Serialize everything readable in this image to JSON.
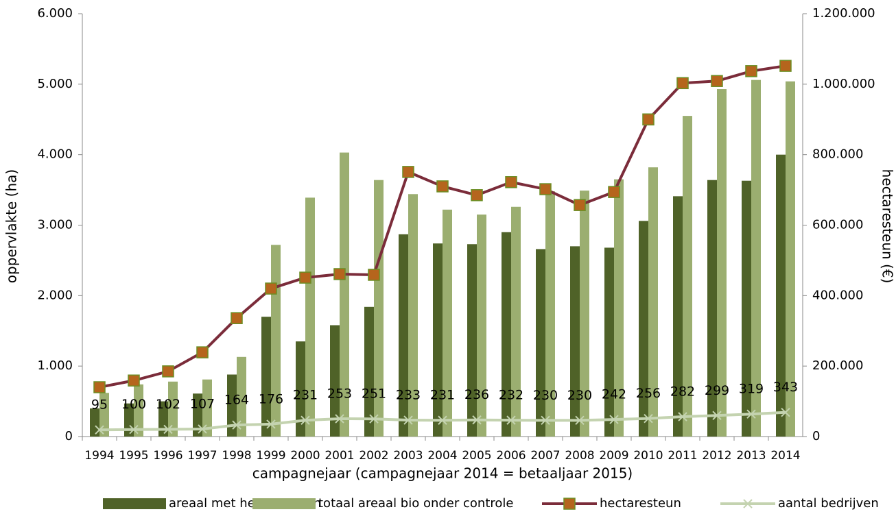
{
  "chart_data": {
    "type": "combo",
    "categories": [
      "1994",
      "1995",
      "1996",
      "1997",
      "1998",
      "1999",
      "2000",
      "2001",
      "2002",
      "2003",
      "2004",
      "2005",
      "2006",
      "2007",
      "2008",
      "2009",
      "2010",
      "2011",
      "2012",
      "2013",
      "2014"
    ],
    "x_label": "campagnejaar (campagnejaar 2014 = betaaljaar 2015)",
    "y_label": "oppervlakte (ha)",
    "y2_label": "hectaresteun (€)",
    "ylim": [
      0,
      6000
    ],
    "yticks": [
      0,
      {
        "value": 1000,
        "label": "1.000"
      },
      {
        "value": 2000,
        "label": "2.000"
      },
      {
        "value": 3000,
        "label": "3.000"
      },
      {
        "value": 4000,
        "label": "4.000"
      },
      {
        "value": 5000,
        "label": "5.000"
      },
      {
        "value": 6000,
        "label": "6.000"
      }
    ],
    "y2lim": [
      0,
      1200000
    ],
    "y2ticks": [
      0,
      {
        "value": 200000,
        "label": "200.000"
      },
      {
        "value": 400000,
        "label": "400.000"
      },
      {
        "value": 600000,
        "label": "600.000"
      },
      {
        "value": 800000,
        "label": "800.000"
      },
      {
        "value": 1000000,
        "label": "1.000.000"
      },
      {
        "value": 1200000,
        "label": "1.200.000"
      }
    ],
    "grid": false,
    "legend": "bottom",
    "series": [
      {
        "name": "areaal met hectaresteun",
        "type": "bar",
        "color": "#4f6228",
        "values": [
          400,
          470,
          500,
          610,
          880,
          1700,
          1350,
          1580,
          1840,
          2870,
          2740,
          2730,
          2900,
          2660,
          2700,
          2680,
          3060,
          3410,
          3640,
          3630,
          4000
        ]
      },
      {
        "name": "totaal areaal bio onder controle",
        "type": "bar",
        "color": "#9bae70",
        "values": [
          620,
          740,
          780,
          810,
          1130,
          2720,
          3390,
          4030,
          3640,
          3440,
          3220,
          3150,
          3260,
          3480,
          3490,
          3650,
          3820,
          4550,
          4930,
          5060,
          5040
        ]
      },
      {
        "name": "hectaresteun",
        "type": "line",
        "axis": "y2",
        "color": "#7b2c3a",
        "marker": "square",
        "marker_color": "#b5651d",
        "values": [
          140000,
          159000,
          185000,
          239000,
          336000,
          420000,
          451000,
          461000,
          459000,
          751000,
          710000,
          685000,
          722000,
          702000,
          657000,
          694000,
          900000,
          1003000,
          1009000,
          1037000,
          1052000
        ]
      },
      {
        "name": "aantal bedrijven",
        "type": "line",
        "color": "#c4d3b0",
        "marker": "x",
        "data_labels": true,
        "values": [
          95,
          100,
          102,
          107,
          164,
          176,
          231,
          253,
          251,
          233,
          231,
          236,
          232,
          230,
          230,
          242,
          256,
          282,
          299,
          319,
          343
        ]
      }
    ]
  }
}
